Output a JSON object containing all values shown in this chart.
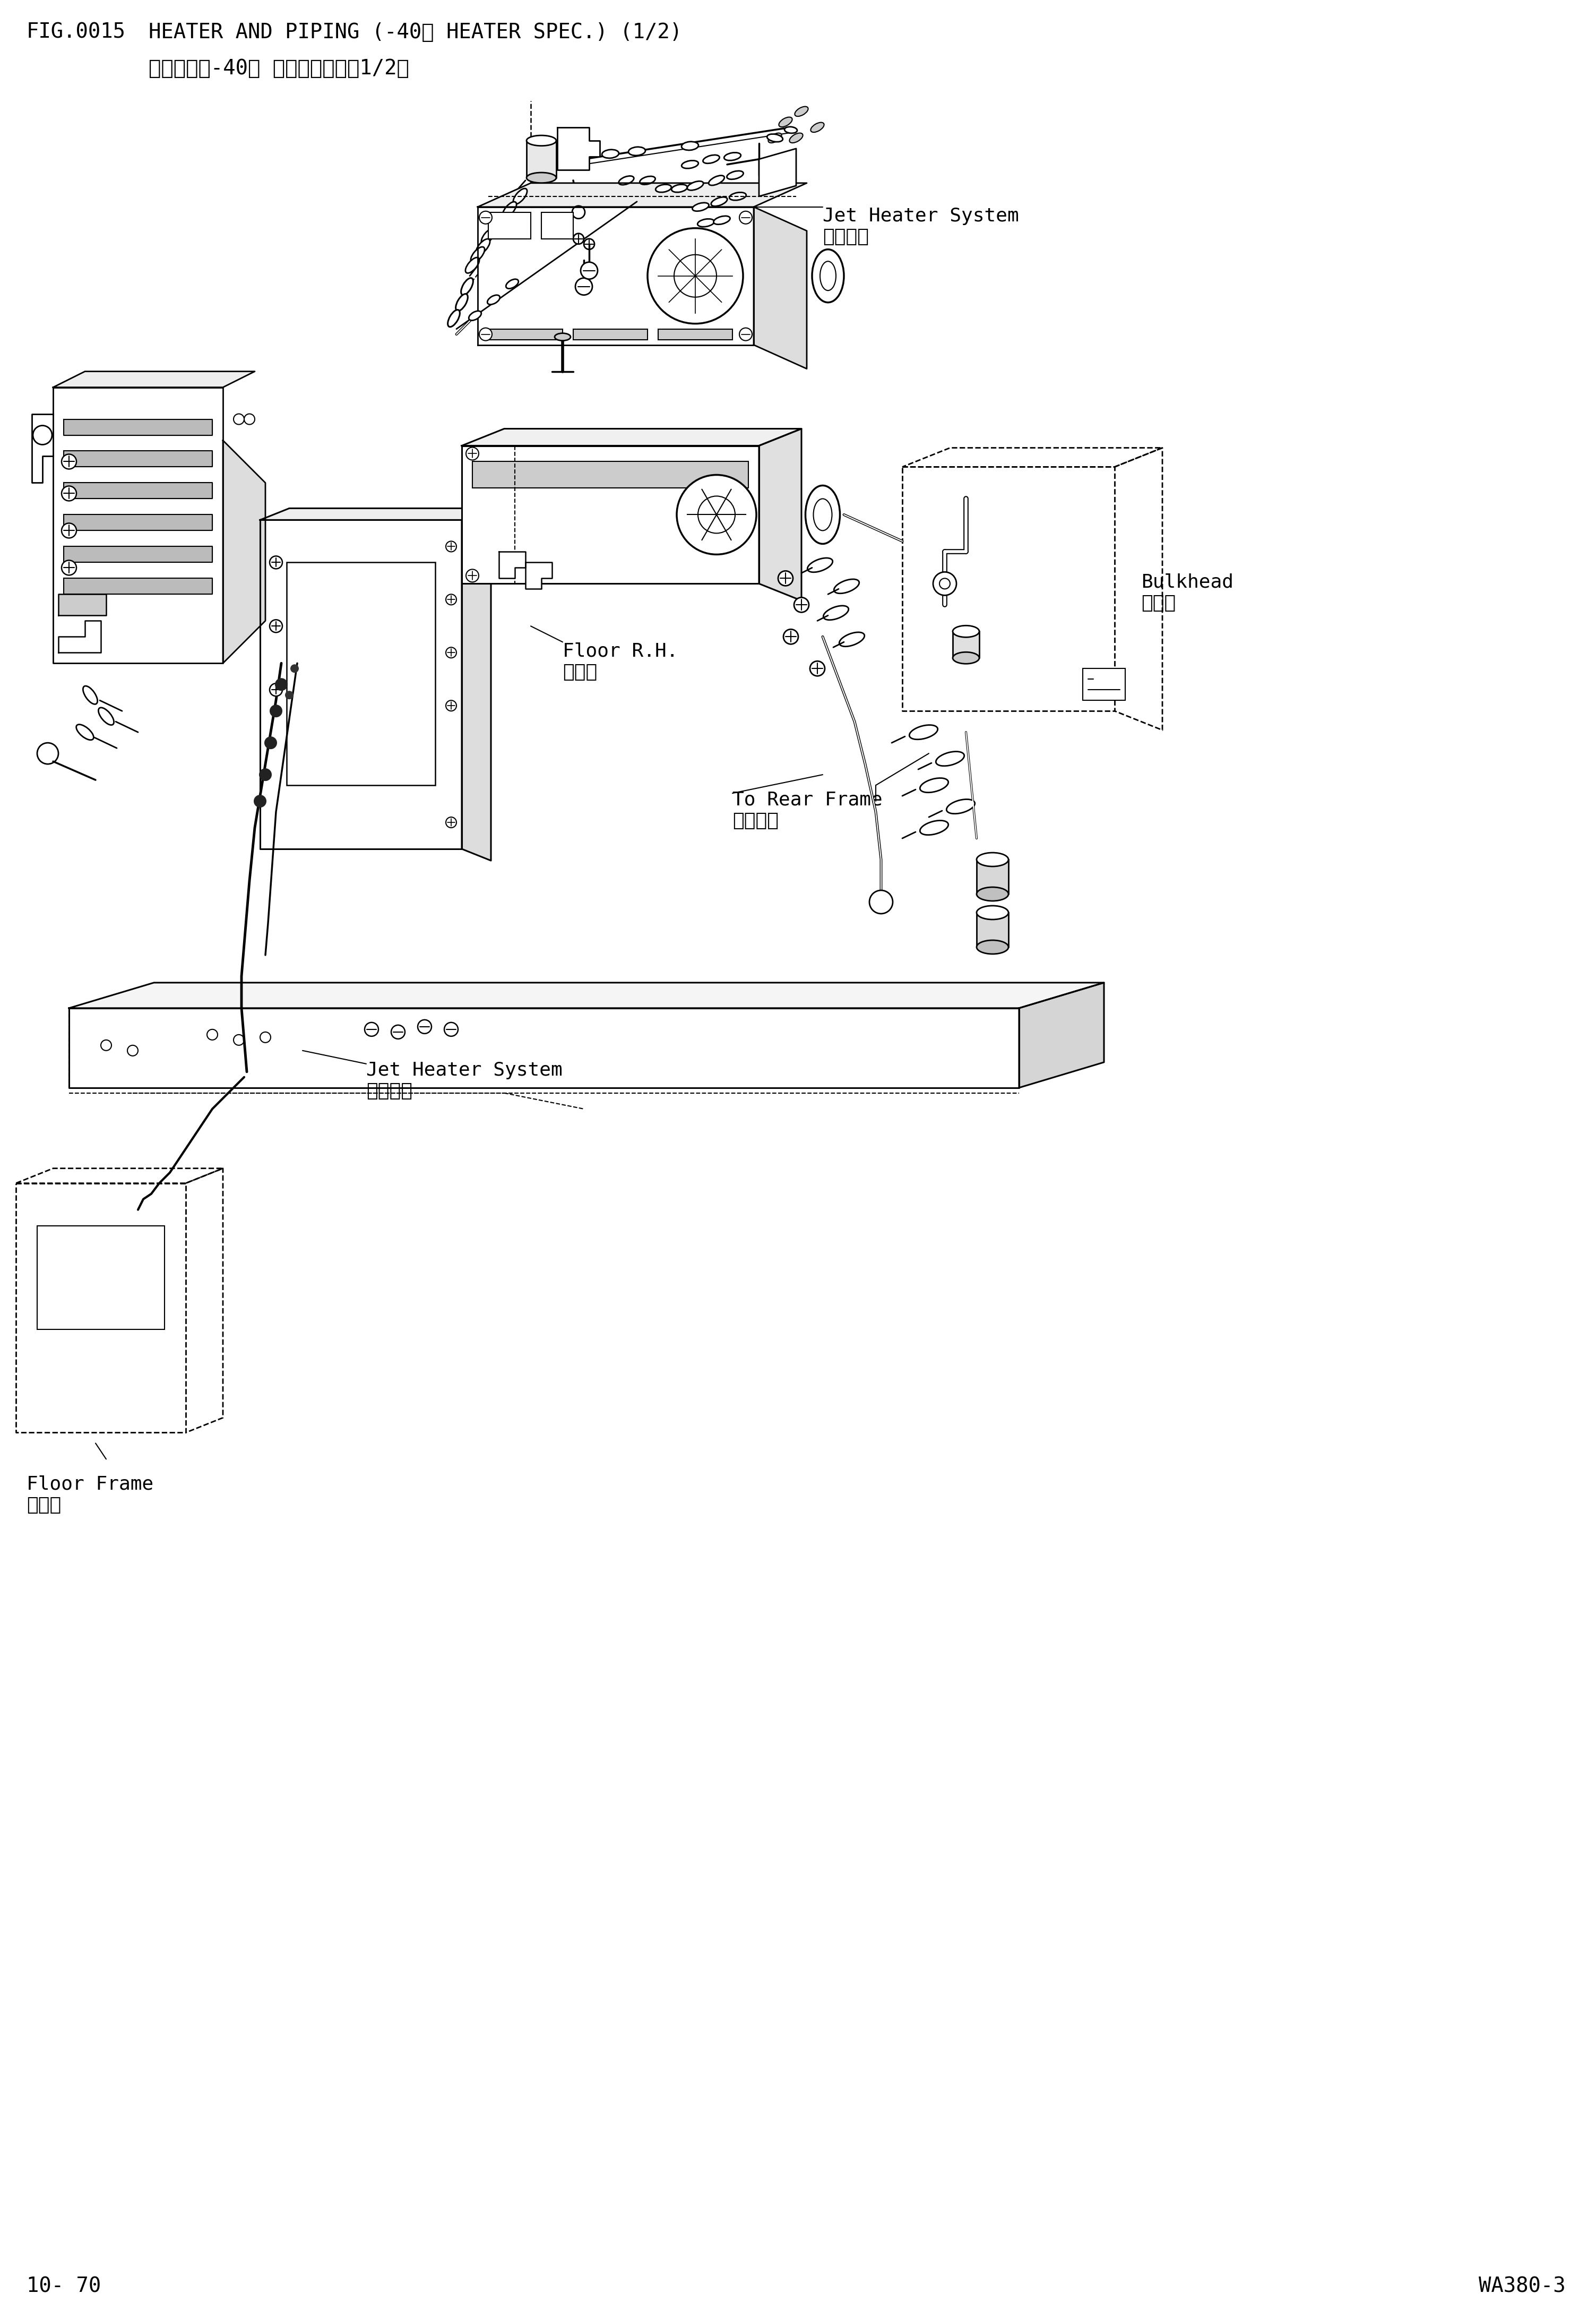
{
  "fig_number": "FIG.0015",
  "title_en": "HEATER AND PIPING (-40℃ HEATER SPEC.) (1/2)",
  "title_cn": "加热管路（-40℃ 暖风机仕样）（1/2）",
  "page_left": "10- 70",
  "page_right": "WA380-3",
  "bg_color": "#ffffff",
  "lc": "#000000",
  "label_jet_heater_top": "Jet Heater System\n加热系统",
  "label_bulkhead": "Bulkhead\n隔离筱",
  "label_floor_rh": "Floor R.H.\n右地板",
  "label_rear_frame": "To Rear Frame\n至后车架",
  "label_jet_heater_bot": "Jet Heater System\n加热系统",
  "label_floor_frame": "Floor Frame\n地板架"
}
